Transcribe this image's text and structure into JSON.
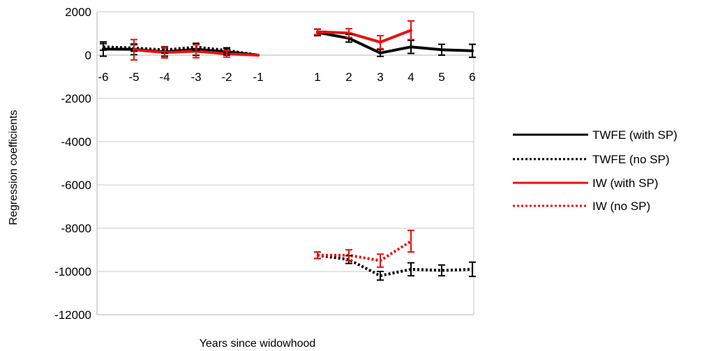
{
  "chart_data": {
    "type": "line",
    "xlabel": "Years since widowhood",
    "ylabel": "Regression coefficients",
    "ylim": [
      -12000,
      2000
    ],
    "yticks": [
      2000,
      0,
      -2000,
      -4000,
      -6000,
      -8000,
      -10000,
      -12000
    ],
    "xticks": [
      -6,
      -5,
      -4,
      -3,
      -2,
      -1,
      1,
      2,
      3,
      4,
      5,
      6
    ],
    "grid": "horizontal",
    "legend_position": "right",
    "series": [
      {
        "name": "TWFE (with SP)",
        "color": "#000000",
        "style": "solid",
        "segments": [
          {
            "x": [
              -6,
              -5,
              -4,
              -3,
              -2,
              -1
            ],
            "y": [
              280,
              270,
              150,
              270,
              150,
              0
            ],
            "err": [
              330,
              250,
              200,
              280,
              150,
              0
            ]
          },
          {
            "x": [
              1,
              2,
              3,
              4,
              5,
              6
            ],
            "y": [
              1050,
              780,
              100,
              380,
              250,
              200
            ],
            "err": [
              150,
              180,
              160,
              300,
              250,
              300
            ]
          }
        ]
      },
      {
        "name": "TWFE (no SP)",
        "color": "#000000",
        "style": "dotted",
        "segments": [
          {
            "x": [
              -6,
              -5,
              -4,
              -3,
              -2,
              -1
            ],
            "y": [
              380,
              330,
              240,
              370,
              220,
              0
            ],
            "err": [
              150,
              150,
              150,
              150,
              120,
              0
            ]
          },
          {
            "x": [
              1,
              2,
              3,
              4,
              5,
              6
            ],
            "y": [
              -9250,
              -9450,
              -10200,
              -9900,
              -9950,
              -9900
            ],
            "err": [
              150,
              180,
              200,
              300,
              250,
              330
            ]
          }
        ]
      },
      {
        "name": "IW (with SP)",
        "color": "#e8110f",
        "style": "solid",
        "segments": [
          {
            "x": [
              -5,
              -4,
              -3,
              -2,
              -1
            ],
            "y": [
              250,
              120,
              180,
              60,
              0
            ],
            "err": [
              470,
              250,
              300,
              150,
              0
            ]
          },
          {
            "x": [
              1,
              2,
              3,
              4
            ],
            "y": [
              1080,
              1020,
              600,
              1150
            ],
            "err": [
              130,
              200,
              300,
              430
            ]
          }
        ]
      },
      {
        "name": "IW (no SP)",
        "color": "#e8110f",
        "style": "dotted",
        "segments": [
          {
            "x": [
              1,
              2,
              3,
              4
            ],
            "y": [
              -9250,
              -9250,
              -9500,
              -8600
            ],
            "err": [
              150,
              250,
              300,
              500
            ]
          }
        ]
      }
    ]
  }
}
